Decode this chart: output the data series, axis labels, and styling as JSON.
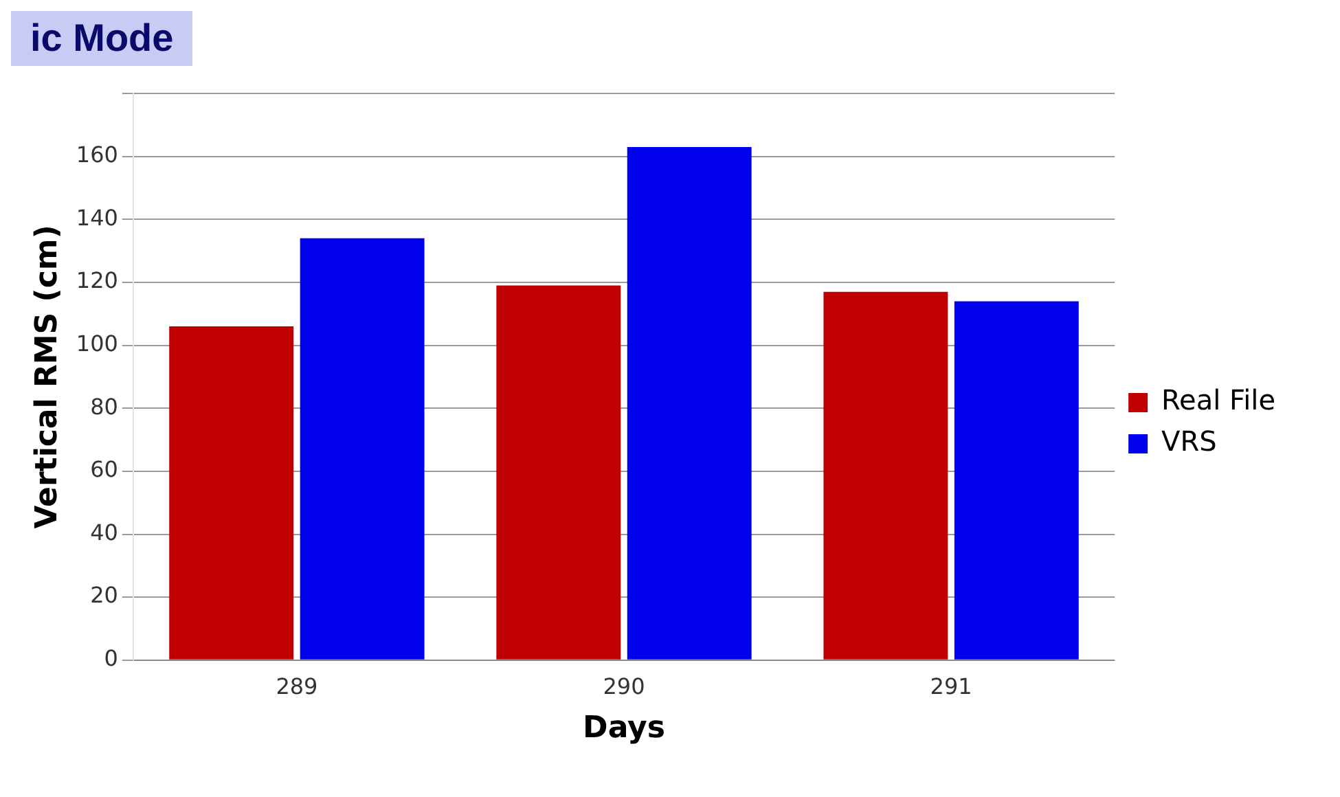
{
  "chart_data": {
    "type": "bar",
    "xlabel": "Days",
    "ylabel": "Vertical RMS (cm)",
    "categories": [
      "289",
      "290",
      "291"
    ],
    "series": [
      {
        "name": "Real File",
        "color": "#c00000",
        "values": [
          106,
          119,
          117
        ]
      },
      {
        "name": "VRS",
        "color": "#0000ee",
        "values": [
          134,
          163,
          114
        ]
      }
    ],
    "ylim": [
      0,
      180
    ],
    "yticks": [
      0,
      20,
      40,
      60,
      80,
      100,
      120,
      140,
      160,
      {
        "value": 180,
        "label": null
      }
    ],
    "grid": "y",
    "legend": "right",
    "annotations": [
      "ic Mode"
    ]
  }
}
